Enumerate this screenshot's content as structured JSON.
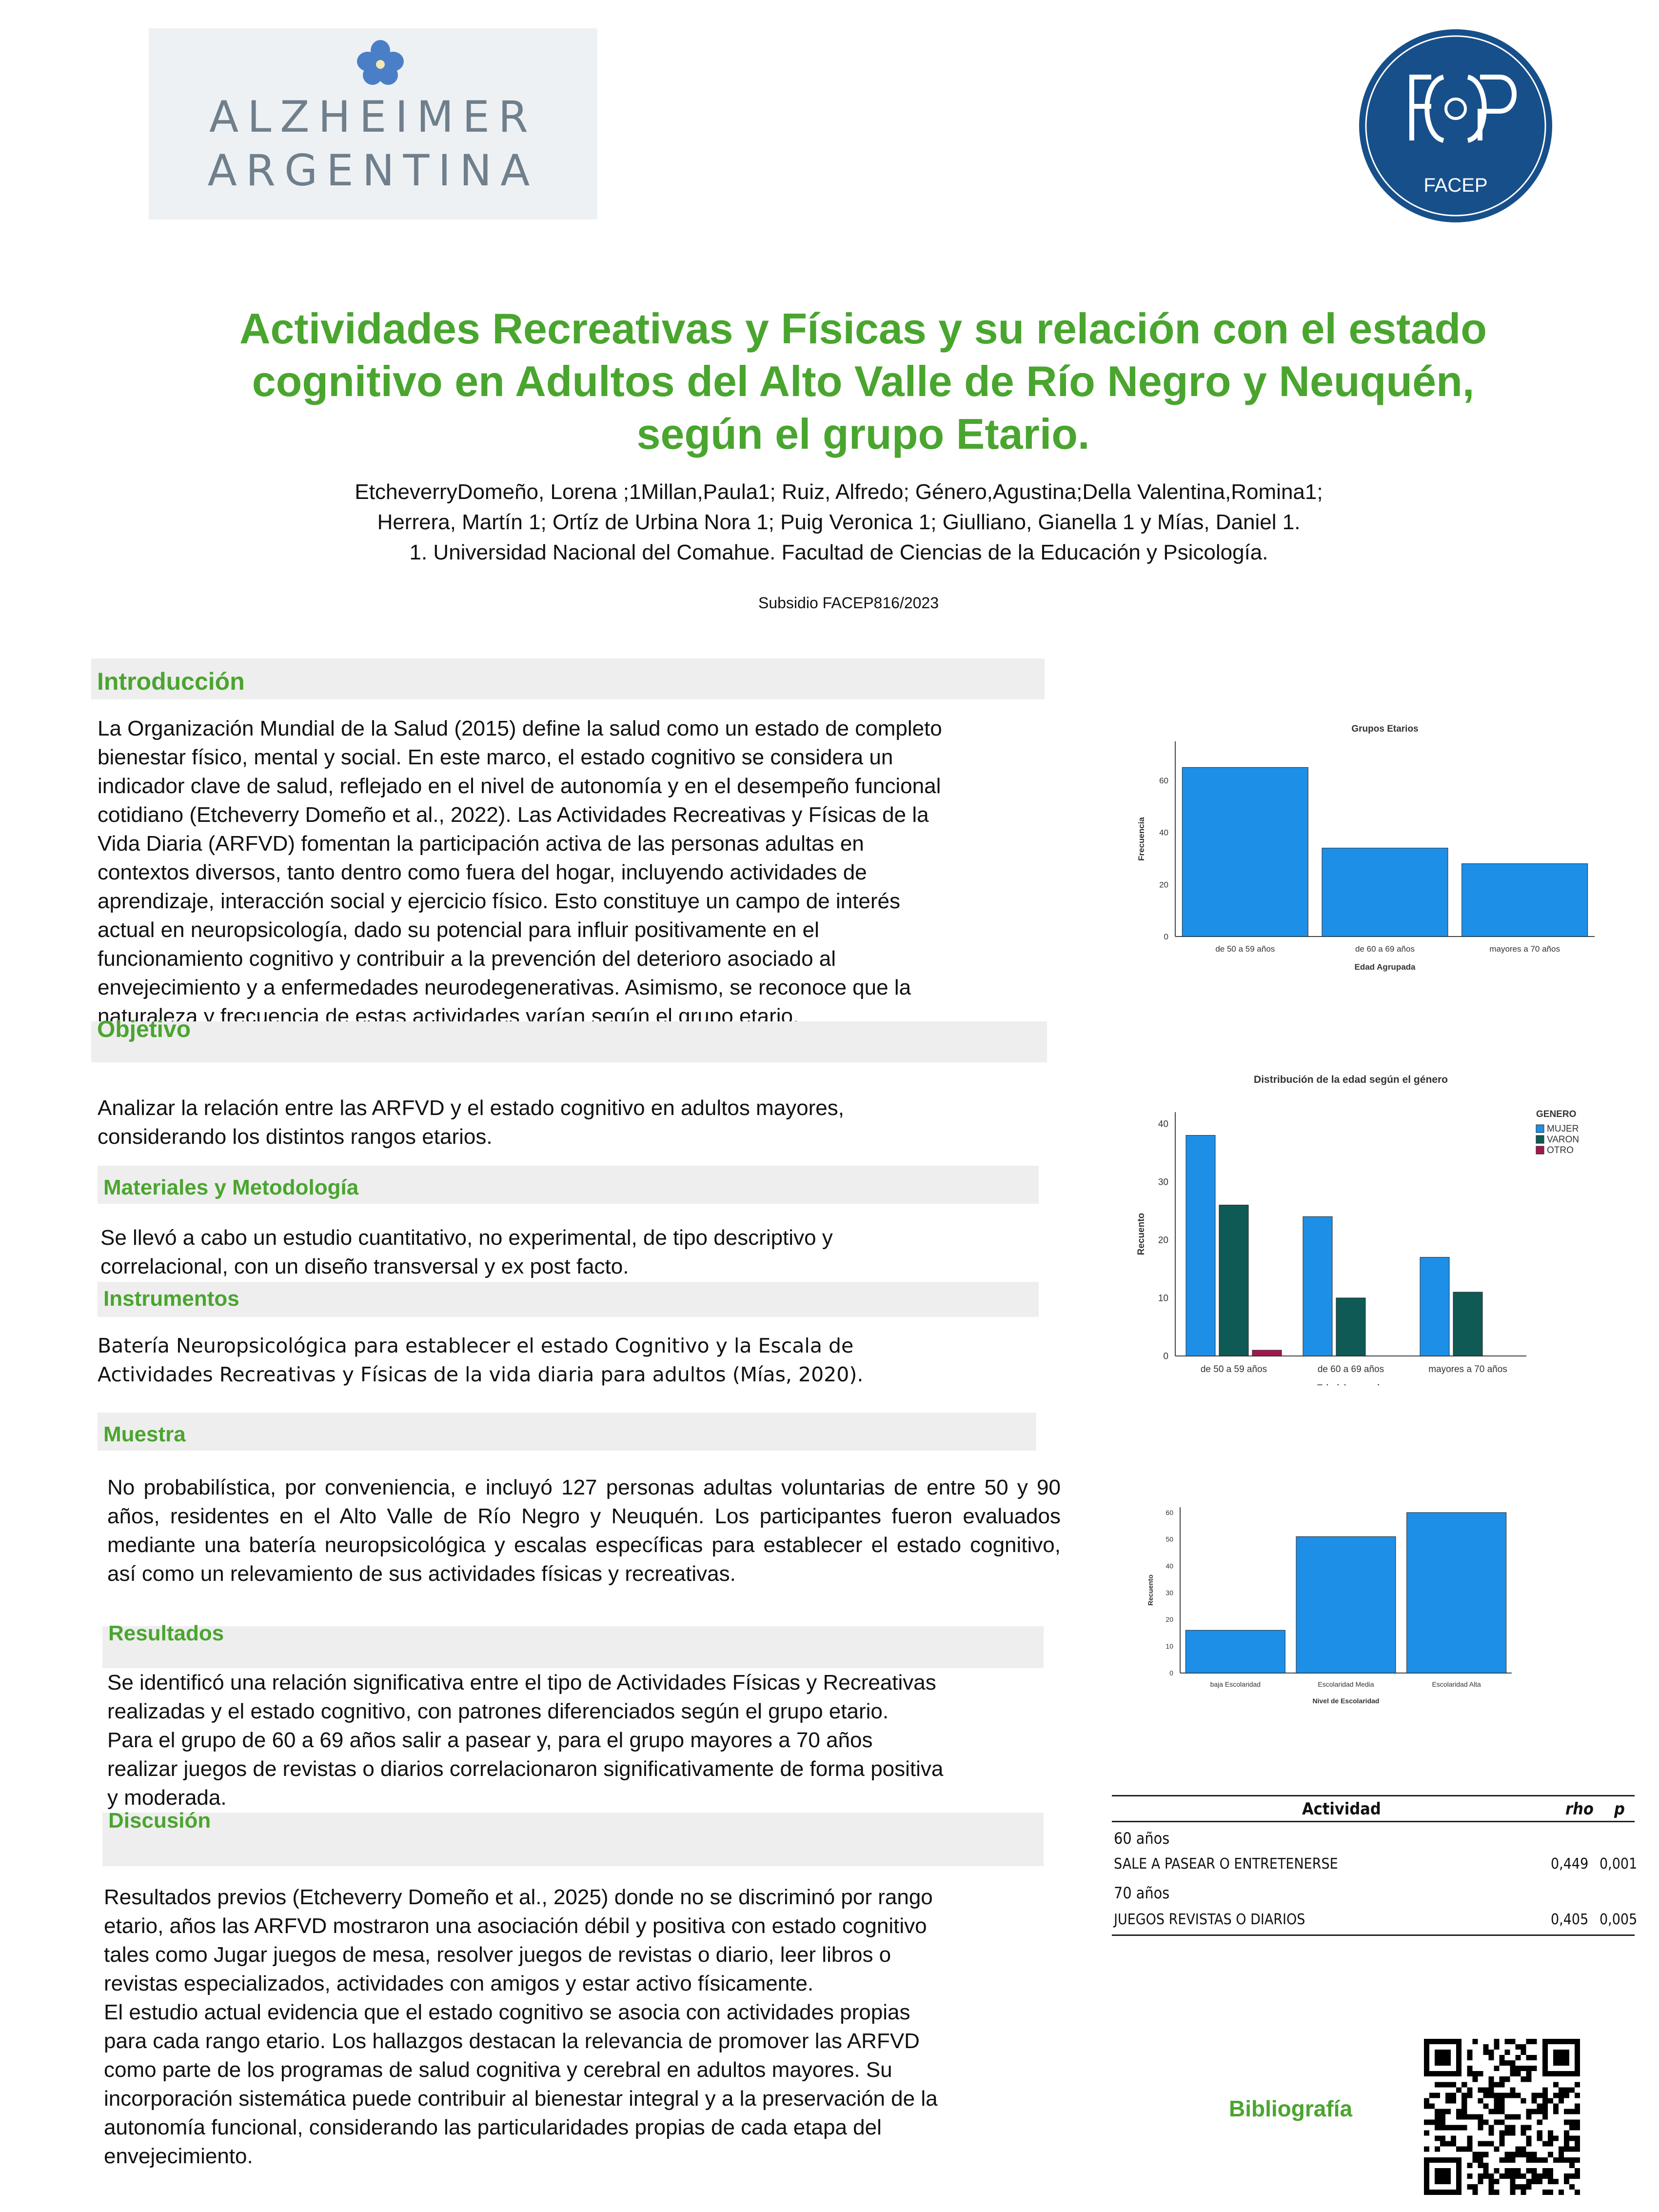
{
  "logos": {
    "alzheimer_line1": "ALZHEIMER",
    "alzheimer_line2": "ARGENTINA",
    "facep_caption": "FACEP"
  },
  "title": {
    "line1": "Actividades Recreativas y Físicas y su relación con el estado",
    "line2": "cognitivo en Adultos del Alto Valle de Río Negro y Neuquén,",
    "line3": "según el grupo Etario."
  },
  "authors": {
    "line1": "EtcheverryDomeño, Lorena ;1Millan,Paula1; Ruiz, Alfredo; Género,Agustina;Della Valentina,Romina1;",
    "line2": "Herrera, Martín 1; Ortíz de Urbina Nora 1; Puig Veronica 1; Giulliano, Gianella 1 y Mías, Daniel 1.",
    "line3": "1. Universidad Nacional del Comahue. Facultad de Ciencias de la Educación y Psicología."
  },
  "subsidy": "Subsidio FACEP816/2023",
  "sections": {
    "introduccion": {
      "heading": "Introducción",
      "lines": [
        "La Organización Mundial de la Salud (2015) define la salud como un estado de completo",
        "bienestar físico, mental y social. En este marco, el estado cognitivo se considera un",
        "indicador clave de salud, reflejado en el nivel de autonomía y en el desempeño funcional",
        "cotidiano (Etcheverry Domeño et al., 2022). Las Actividades Recreativas y Físicas de la",
        "Vida Diaria (ARFVD) fomentan la participación activa de las personas adultas en",
        "contextos diversos, tanto dentro como fuera del hogar, incluyendo actividades de",
        "aprendizaje, interacción social y ejercicio físico. Esto constituye un campo de interés",
        "actual en neuropsicología, dado su potencial para influir positivamente en el",
        "funcionamiento cognitivo y contribuir a la prevención del deterioro asociado al",
        "envejecimiento y a enfermedades neurodegenerativas. Asimismo, se reconoce que la",
        "naturaleza y frecuencia de estas actividades varían según el grupo etario."
      ]
    },
    "objetivo": {
      "heading": "Objetivo",
      "lines": [
        "Analizar la relación entre las ARFVD y el estado cognitivo en adultos mayores,",
        "considerando los distintos rangos etarios."
      ]
    },
    "materiales": {
      "heading": "Materiales y Metodología",
      "lines": [
        "Se llevó a cabo un estudio cuantitativo, no experimental, de tipo descriptivo y",
        "correlacional, con un diseño transversal y ex post facto."
      ]
    },
    "instrumentos": {
      "heading": "Instrumentos",
      "lines": [
        "Batería Neuropsicológica para establecer el estado Cognitivo y la Escala de",
        "Actividades Recreativas y Físicas de la vida diaria para adultos (Mías, 2020)."
      ]
    },
    "muestra": {
      "heading": "Muestra",
      "text": "No probabilística, por conveniencia, e incluyó 127 personas adultas voluntarias de entre 50 y 90 años, residentes en el Alto Valle de Río Negro y Neuquén. Los participantes fueron evaluados mediante una batería neuropsicológica y escalas específicas para establecer el estado cognitivo, así como un relevamiento de sus actividades físicas y recreativas."
    },
    "resultados": {
      "heading": "Resultados",
      "lines": [
        "Se identificó una relación significativa entre el tipo de Actividades Físicas y Recreativas",
        "realizadas y el estado cognitivo, con patrones diferenciados según el grupo etario.",
        "Para el grupo de 60 a 69 años salir a pasear y, para el grupo mayores a 70 años",
        "realizar juegos de revistas o diarios correlacionaron significativamente de forma positiva",
        "y moderada."
      ]
    },
    "discusion": {
      "heading": "Discusión",
      "lines": [
        "Resultados previos (Etcheverry Domeño et al., 2025) donde no se discriminó por rango",
        "etario, años las ARFVD mostraron una asociación débil y positiva con estado cognitivo",
        "tales como Jugar juegos de mesa, resolver juegos de revistas o diario, leer libros o",
        "revistas especializados, actividades con amigos y estar activo físicamente.",
        "El estudio actual evidencia que el estado cognitivo se asocia con actividades propias",
        "para cada rango etario. Los hallazgos destacan la relevancia de promover las ARFVD",
        "como parte de los programas de salud cognitiva y cerebral en adultos mayores. Su",
        "incorporación sistemática puede contribuir al bienestar integral y a la preservación de la",
        "autonomía funcional, considerando las particularidades propias de cada etapa del",
        "envejecimiento."
      ]
    }
  },
  "chart_data": [
    {
      "type": "bar",
      "title": "Grupos Etarios",
      "xlabel": "Edad Agrupada",
      "ylabel": "Frecuencia",
      "categories": [
        "de 50 a 59 años",
        "de 60 a 69 años",
        "mayores a 70 años"
      ],
      "values": [
        65,
        34,
        28
      ],
      "ylim": [
        0,
        75
      ],
      "yticks": [
        0,
        20,
        40,
        60
      ],
      "color": "#1e8fe6",
      "grid": false
    },
    {
      "type": "bar",
      "title": "Distribución de la edad según el género",
      "xlabel": "Edad Agrupada",
      "ylabel": "Recuento",
      "categories": [
        "de 50 a 59 años",
        "de 60 a 69 años",
        "mayores a 70 años"
      ],
      "legend_title": "GENERO",
      "legend_position": "right",
      "series": [
        {
          "name": "MUJER",
          "color": "#1e8fe6",
          "values": [
            38,
            24,
            17
          ]
        },
        {
          "name": "VARON",
          "color": "#0f5a55",
          "values": [
            26,
            10,
            11
          ]
        },
        {
          "name": "OTRO",
          "color": "#a3174e",
          "values": [
            1,
            0,
            0
          ]
        }
      ],
      "ylim": [
        0,
        42
      ],
      "yticks": [
        0,
        10,
        20,
        30,
        40
      ],
      "grid": false
    },
    {
      "type": "bar",
      "title": "",
      "xlabel": "Nivel de Escolaridad",
      "ylabel": "Recuento",
      "categories": [
        "baja Escolaridad",
        "Escolaridad Media",
        "Escolaridad Alta"
      ],
      "values": [
        16,
        51,
        60
      ],
      "ylim": [
        0,
        62
      ],
      "yticks": [
        0,
        10,
        20,
        30,
        40,
        50,
        60
      ],
      "color": "#1e8fe6",
      "grid": false
    }
  ],
  "stats_table": {
    "headers": [
      "Actividad",
      "rho",
      "p"
    ],
    "rows": [
      {
        "label": "60 años",
        "rho": "",
        "p": "",
        "group": true
      },
      {
        "label": "SALE A PASEAR O ENTRETENERSE",
        "rho": "0,449",
        "p": "0,001",
        "group": false
      },
      {
        "label": "70 años",
        "rho": "",
        "p": "",
        "group": true
      },
      {
        "label": "JUEGOS REVISTAS O DIARIOS",
        "rho": "0,405",
        "p": "0,005",
        "group": false
      }
    ]
  },
  "bibliografia": "Bibliografía",
  "colors": {
    "accent_green": "#4aa52f",
    "facep_blue": "#174f8a",
    "bar_blue": "#1e8fe6"
  }
}
